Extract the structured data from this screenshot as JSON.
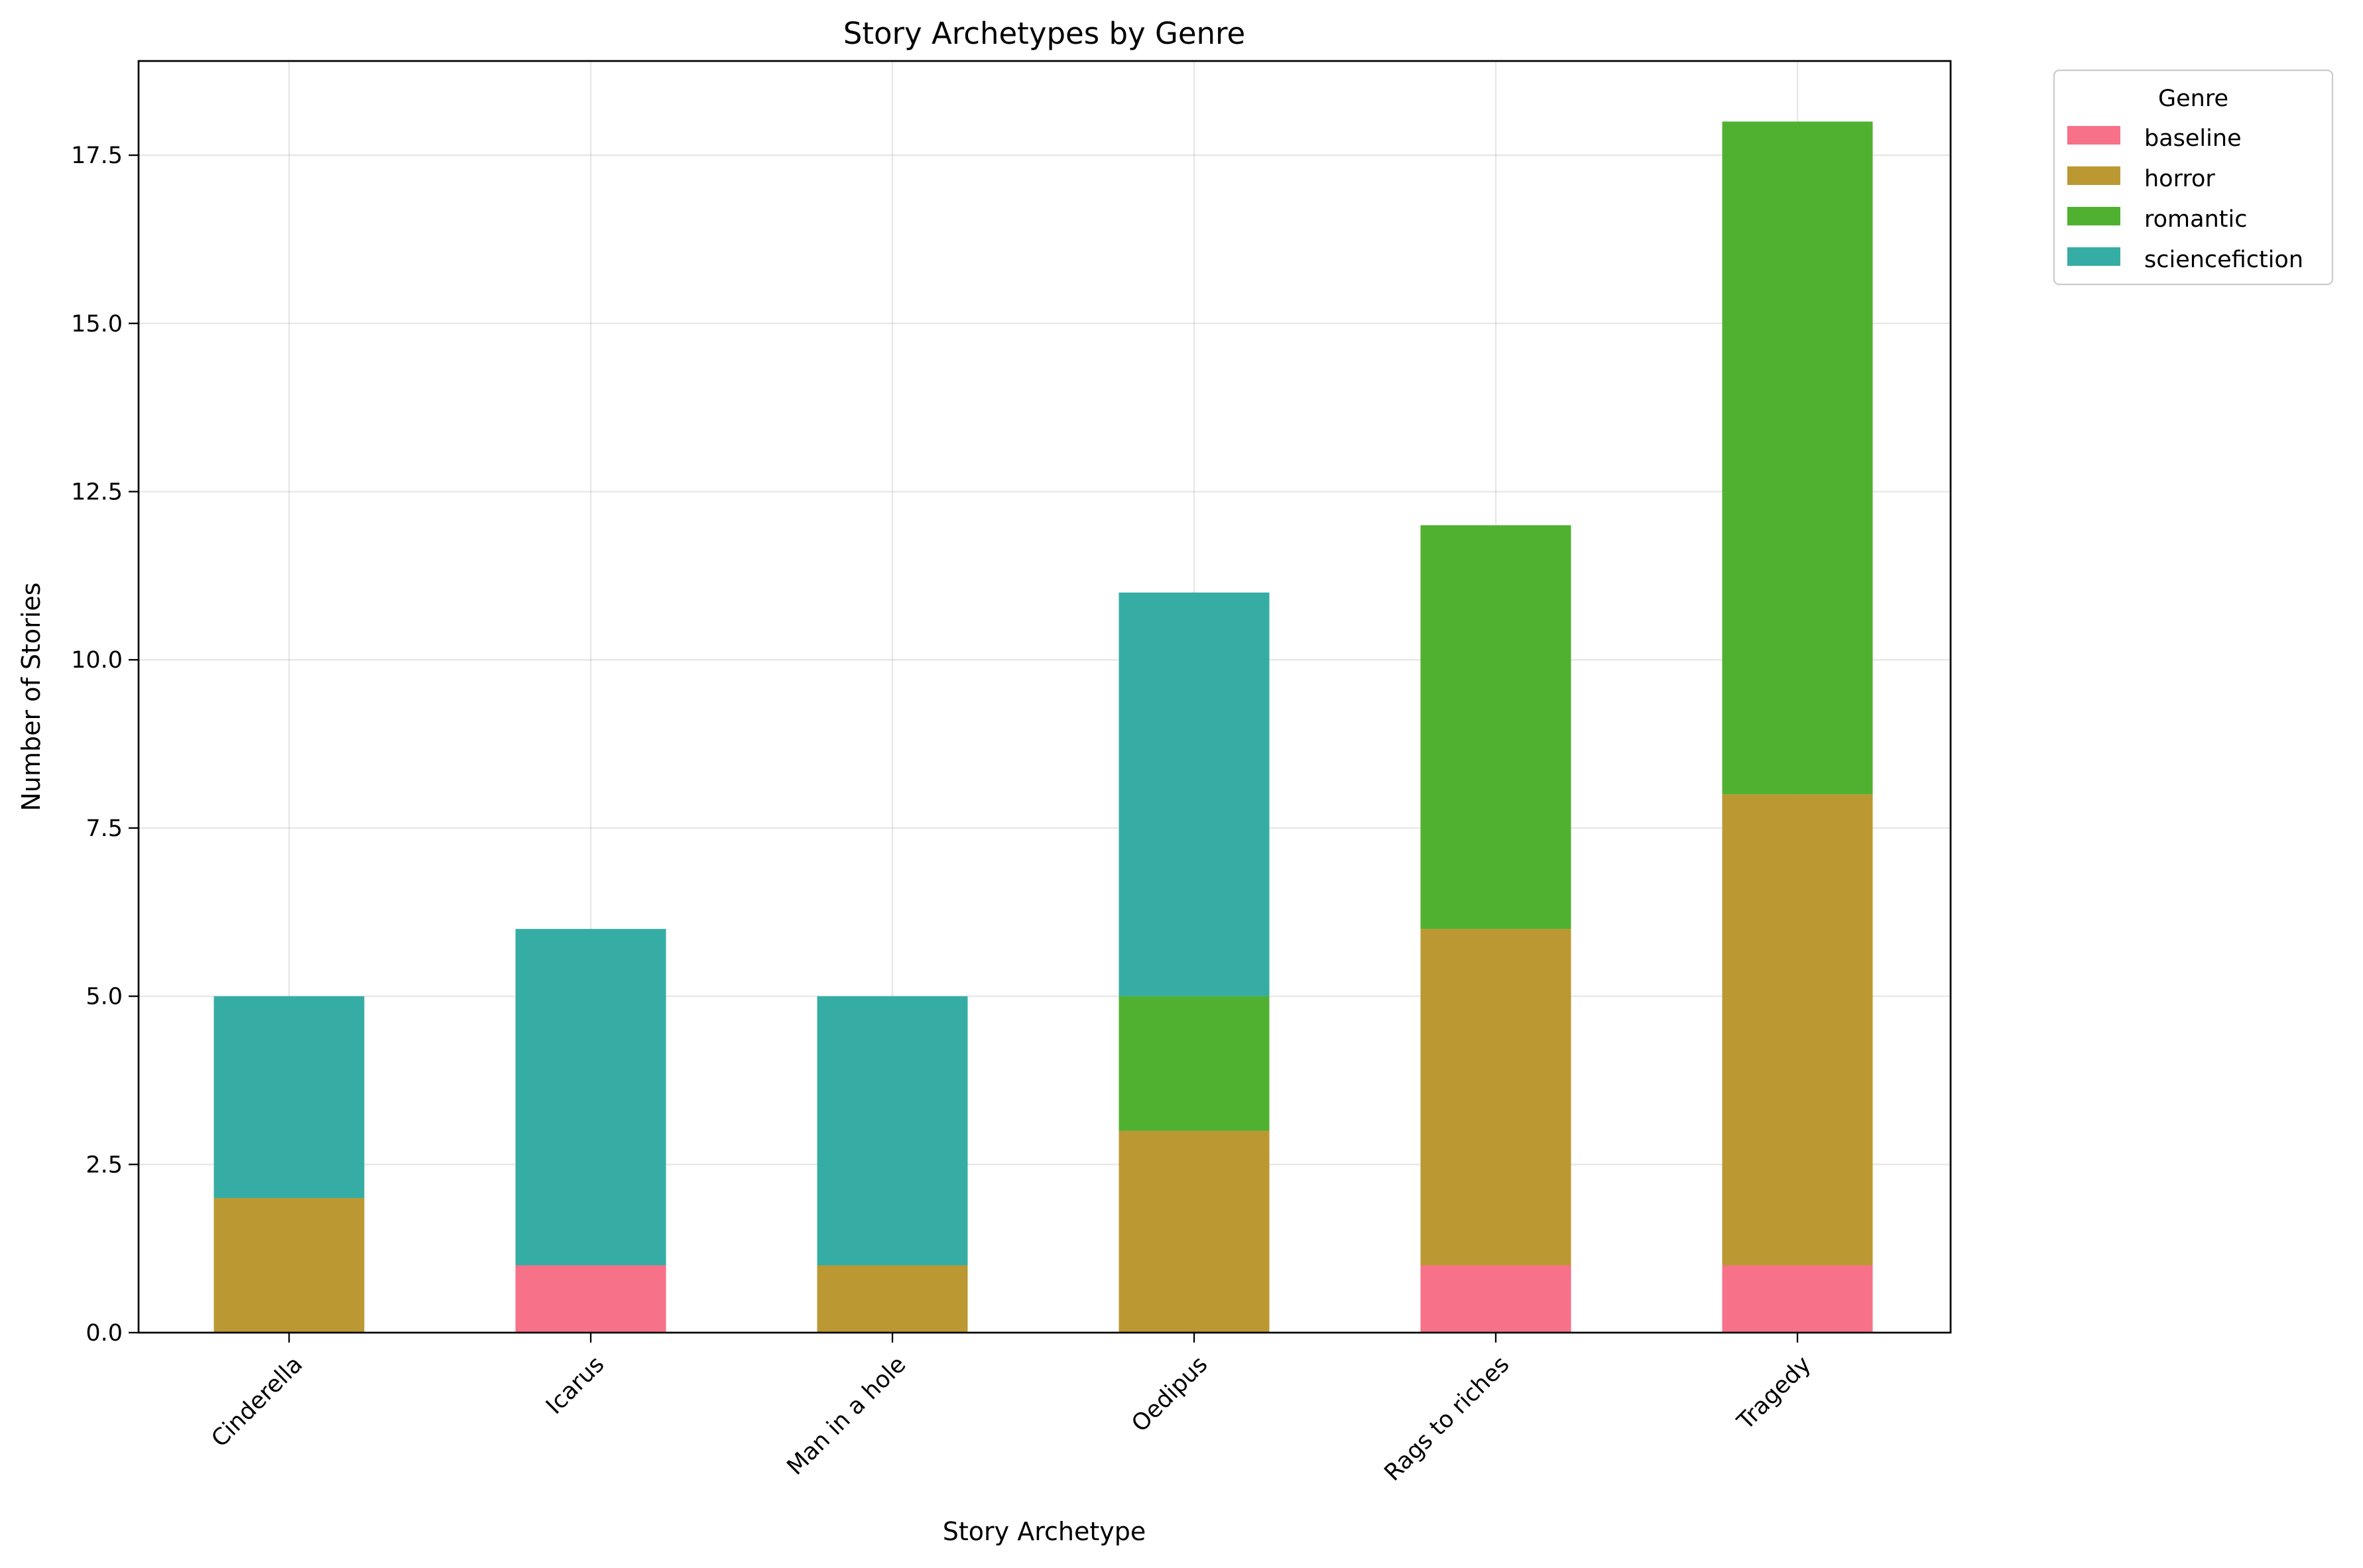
{
  "chart_data": {
    "type": "bar",
    "stacked": true,
    "title": "Story Archetypes by Genre",
    "xlabel": "Story Archetype",
    "ylabel": "Number of Stories",
    "categories": [
      "Cinderella",
      "Icarus",
      "Man in a hole",
      "Oedipus",
      "Rags to riches",
      "Tragedy"
    ],
    "series": [
      {
        "name": "baseline",
        "color": "#f77189",
        "values": [
          0,
          1,
          0,
          0,
          1,
          1
        ]
      },
      {
        "name": "horror",
        "color": "#bb9832",
        "values": [
          2,
          0,
          1,
          3,
          5,
          7
        ]
      },
      {
        "name": "romantic",
        "color": "#50b131",
        "values": [
          0,
          0,
          0,
          2,
          6,
          10
        ]
      },
      {
        "name": "sciencefiction",
        "color": "#36ada4",
        "values": [
          3,
          5,
          4,
          6,
          0,
          0
        ]
      }
    ],
    "ylim": [
      0,
      18.9
    ],
    "yticks": [
      0.0,
      2.5,
      5.0,
      7.5,
      10.0,
      12.5,
      15.0,
      17.5
    ],
    "ytick_labels": [
      "0.0",
      "2.5",
      "5.0",
      "7.5",
      "10.0",
      "12.5",
      "15.0",
      "17.5"
    ],
    "grid": true,
    "legend": {
      "title": "Genre",
      "placement": "outside-top-right"
    }
  }
}
